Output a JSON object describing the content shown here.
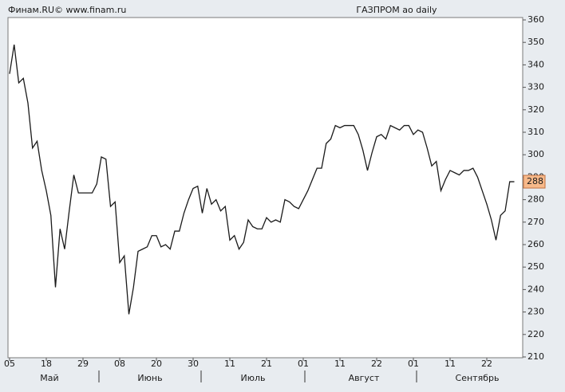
{
  "chart_data": {
    "type": "line",
    "title": "ГАЗПРОМ ао daily",
    "source": "Финам.RU©  www.finam.ru",
    "categories": [
      "05",
      null,
      null,
      null,
      null,
      null,
      null,
      null,
      "18",
      null,
      null,
      null,
      null,
      null,
      null,
      null,
      "29",
      null,
      null,
      null,
      null,
      null,
      null,
      null,
      "08",
      null,
      null,
      null,
      null,
      null,
      null,
      null,
      "20",
      null,
      null,
      null,
      null,
      null,
      null,
      null,
      "30",
      null,
      null,
      null,
      null,
      null,
      null,
      null,
      "11",
      null,
      null,
      null,
      null,
      null,
      null,
      null,
      "21",
      null,
      null,
      null,
      null,
      null,
      null,
      null,
      "01",
      null,
      null,
      null,
      null,
      null,
      null,
      null,
      "11",
      null,
      null,
      null,
      null,
      null,
      null,
      null,
      "22",
      null,
      null,
      null,
      null,
      null,
      null,
      null,
      "01",
      null,
      null,
      null,
      null,
      null,
      null,
      null,
      "11",
      null,
      null,
      null,
      null,
      null,
      null,
      null,
      "22",
      null,
      null,
      null,
      null,
      null,
      null
    ],
    "series": [
      {
        "name": "ГАЗПРОМ ао",
        "color": "#1a1a1a",
        "values": [
          336,
          349,
          332,
          334,
          323,
          303,
          306,
          293,
          284,
          273,
          241,
          267,
          258,
          275,
          291,
          283,
          283,
          283,
          283,
          287,
          299,
          298,
          277,
          279,
          252,
          255,
          229,
          241,
          257,
          258,
          259,
          264,
          264,
          259,
          260,
          258,
          266,
          266,
          274,
          280,
          285,
          286,
          274,
          285,
          278,
          280,
          275,
          277,
          262,
          264,
          258,
          261,
          271,
          268,
          267,
          267,
          272,
          270,
          271,
          270,
          280,
          279,
          277,
          276,
          280,
          284,
          289,
          294,
          294,
          305,
          307,
          313,
          312,
          313,
          313,
          313,
          309,
          302,
          293,
          301,
          308,
          309,
          307,
          313,
          312,
          311,
          313,
          313,
          309,
          311,
          310,
          303,
          295,
          297,
          284,
          289,
          293,
          292,
          291,
          293,
          293,
          294,
          290,
          284,
          278,
          271,
          262,
          273,
          275,
          288,
          288
        ]
      }
    ],
    "ylim": [
      210,
      360
    ],
    "yticks": [
      210,
      220,
      230,
      240,
      250,
      260,
      270,
      280,
      290,
      300,
      310,
      320,
      330,
      340,
      350,
      360
    ],
    "months": [
      "Май",
      "Июнь",
      "Июль",
      "Август",
      "Сентябрь"
    ]
  }
}
